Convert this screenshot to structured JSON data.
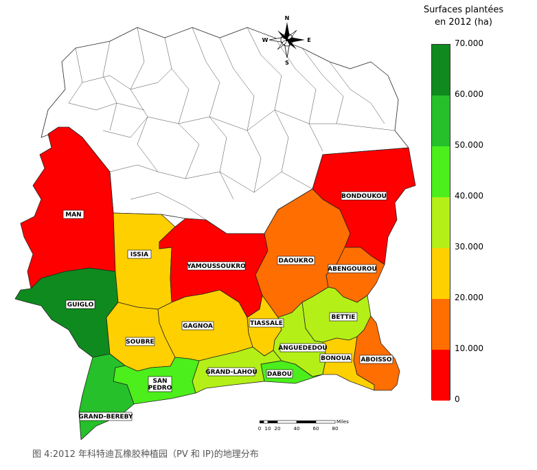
{
  "legend": {
    "title_line1": "Surfaces plantées",
    "title_line2": "en 2012 (ha)",
    "ticks": [
      "70.000",
      "60.000",
      "50.000",
      "40.000",
      "30.000",
      "20.000",
      "10.000",
      "0"
    ],
    "colors": [
      "#0f8a1e",
      "#25c02a",
      "#4cee1b",
      "#b4f017",
      "#ffd000",
      "#ff6e00",
      "#ff0000"
    ]
  },
  "regions": {
    "man": "MAN",
    "guiglo": "GUIGLO",
    "issia": "ISSIA",
    "yamoussoukro": "YAMOUSSOUKRO",
    "daoukro": "DAOUKRO",
    "bondoukou": "BONDOUKOU",
    "abengourou": "ABENGOUROU",
    "soubre": "SOUBRE",
    "gagnoa": "GAGNOA",
    "tiassale": "TIASSALE",
    "bettie": "BETTIE",
    "anguededou": "ANGUEDEDOU",
    "bonoua": "BONOUA",
    "aboisso": "ABOISSO",
    "san_pedro_1": "SAN",
    "san_pedro_2": "PEDRO",
    "grand_lahou": "GRAND-LAHOU",
    "dabou": "DABOU",
    "grand_bereby": "GRAND-BEREBY"
  },
  "compass": {
    "n": "N",
    "s": "S",
    "e": "E",
    "w": "W"
  },
  "scale": {
    "unit": "Miles",
    "ticks": [
      "0",
      "10",
      "20",
      "40",
      "60",
      "80"
    ]
  },
  "caption": "图 4:2012 年科特迪瓦橡胶种植园（PV 和 IP)的地理分布"
}
